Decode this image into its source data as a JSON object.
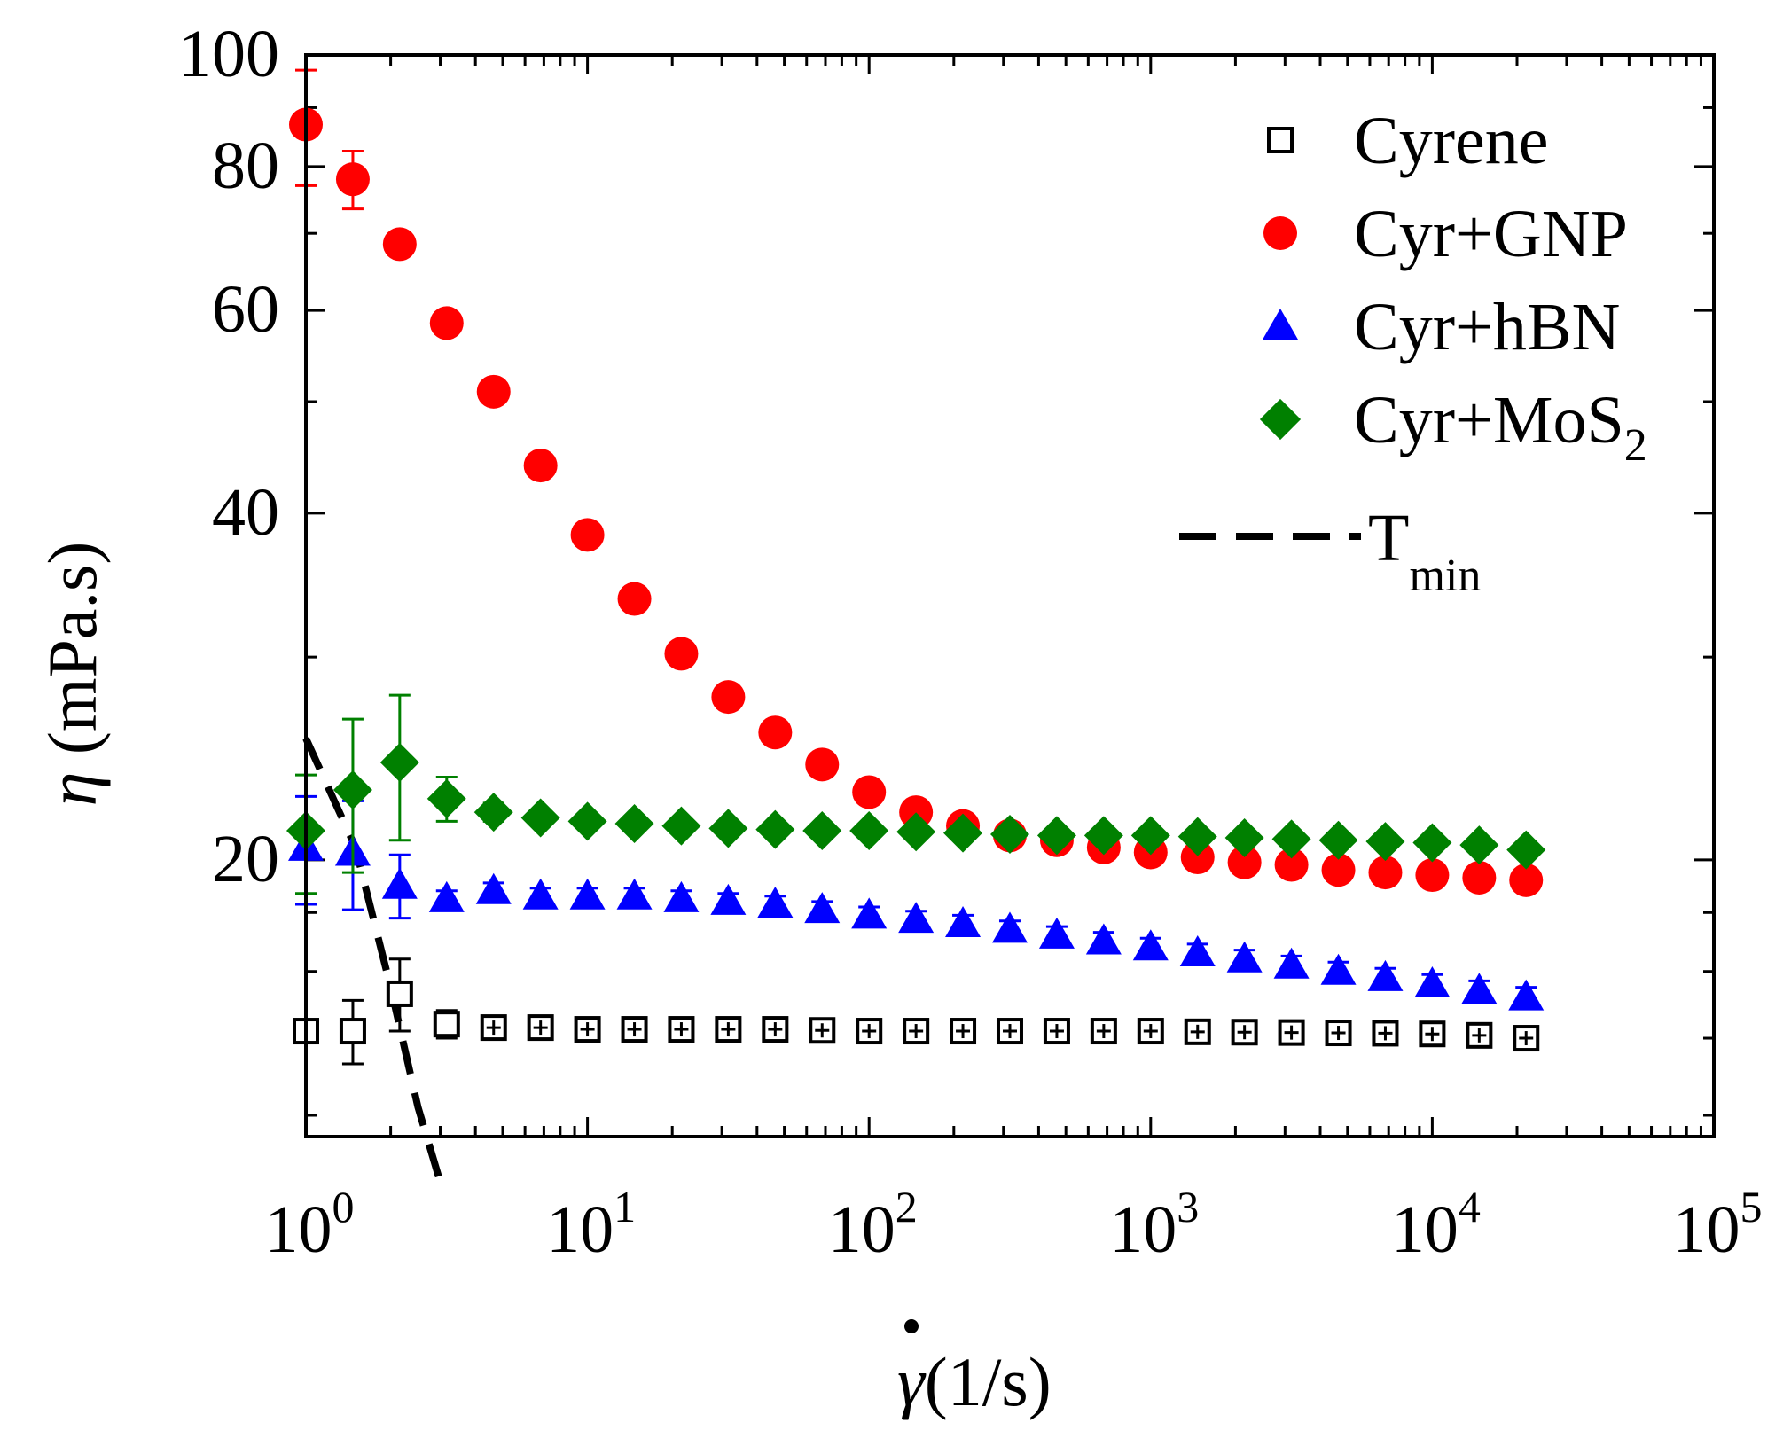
{
  "chart_data": {
    "type": "scatter",
    "title": "",
    "xlabel": {
      "symbol": "γ",
      "unit": "(1/s)"
    },
    "ylabel": {
      "symbol": "η",
      "unit": " (mPa.s)"
    },
    "xscale": "log",
    "yscale": "log",
    "xlim": [
      1,
      100000
    ],
    "ylim": [
      11.5,
      100
    ],
    "x_ticks": [
      {
        "base": "10",
        "exp": "0",
        "value": 1
      },
      {
        "base": "10",
        "exp": "1",
        "value": 10
      },
      {
        "base": "10",
        "exp": "2",
        "value": 100
      },
      {
        "base": "10",
        "exp": "3",
        "value": 1000
      },
      {
        "base": "10",
        "exp": "4",
        "value": 10000
      },
      {
        "base": "10",
        "exp": "5",
        "value": 100000
      }
    ],
    "y_ticks": [
      {
        "label": "20",
        "value": 20
      },
      {
        "label": "40",
        "value": 40
      },
      {
        "label": "60",
        "value": 60
      },
      {
        "label": "80",
        "value": 80
      },
      {
        "label": "100",
        "value": 100
      }
    ],
    "x": [
      1,
      1.468,
      2.154,
      3.162,
      4.642,
      6.813,
      10,
      14.68,
      21.54,
      31.62,
      46.42,
      68.13,
      100,
      146.8,
      215.4,
      316.2,
      464.2,
      681.3,
      1000,
      1468,
      2154,
      3162,
      4642,
      6813,
      10000,
      14680,
      21540
    ],
    "series": [
      {
        "name": "Cyrene",
        "marker": "open-square",
        "color": "#000000",
        "values": [
          14.2,
          14.2,
          15.3,
          14.4,
          14.3,
          14.3,
          14.25,
          14.25,
          14.25,
          14.25,
          14.25,
          14.22,
          14.2,
          14.2,
          14.2,
          14.2,
          14.2,
          14.2,
          14.2,
          14.18,
          14.17,
          14.16,
          14.15,
          14.14,
          14.12,
          14.08,
          14.0
        ],
        "errors": [
          0.2,
          0.9,
          1.1,
          0.4,
          0.1,
          0.1,
          0.1,
          0.1,
          0.1,
          0.1,
          0.1,
          0.1,
          0.1,
          0.1,
          0.1,
          0.1,
          0.1,
          0.1,
          0.1,
          0.1,
          0.1,
          0.1,
          0.1,
          0.1,
          0.1,
          0.1,
          0.1
        ]
      },
      {
        "name": "Cyr+GNP",
        "marker": "filled-circle",
        "color": "#ff0000",
        "values": [
          87,
          78,
          68.5,
          58.5,
          51,
          44,
          38.3,
          33.7,
          30.2,
          27.7,
          25.8,
          24.2,
          22.9,
          22.0,
          21.4,
          21.0,
          20.8,
          20.5,
          20.3,
          20.1,
          19.9,
          19.8,
          19.6,
          19.5,
          19.4,
          19.3,
          19.2
        ],
        "errors": [
          10,
          4.5,
          1.5,
          1.2,
          0,
          0,
          0,
          0,
          0,
          0,
          0,
          0,
          0,
          0,
          0,
          0.4,
          0.4,
          0.4,
          0.4,
          0.4,
          0.4,
          0.3,
          0.3,
          0.3,
          0.3,
          0.3,
          0.3
        ]
      },
      {
        "name": "Cyr+hBN",
        "marker": "filled-triangle",
        "color": "#0000ff",
        "values": [
          20.5,
          20.3,
          19.0,
          18.5,
          18.8,
          18.6,
          18.6,
          18.6,
          18.5,
          18.4,
          18.3,
          18.1,
          17.9,
          17.75,
          17.6,
          17.4,
          17.2,
          17.0,
          16.8,
          16.6,
          16.4,
          16.2,
          16.0,
          15.8,
          15.6,
          15.4,
          15.2
        ],
        "errors": [
          2.2,
          2.2,
          1.2,
          0.3,
          0.3,
          0.3,
          0.3,
          0.3,
          0.3,
          0.3,
          0.3,
          0.3,
          0.3,
          0.3,
          0.3,
          0.3,
          0.3,
          0.3,
          0.3,
          0.3,
          0.3,
          0.3,
          0.3,
          0.3,
          0.3,
          0.3,
          0.3
        ]
      },
      {
        "name": "Cyr+MoS",
        "sub": "2",
        "marker": "filled-diamond",
        "color": "#008000",
        "values": [
          21.2,
          23.0,
          24.3,
          22.6,
          22.0,
          21.75,
          21.6,
          21.5,
          21.4,
          21.3,
          21.25,
          21.2,
          21.2,
          21.15,
          21.1,
          21.05,
          21.0,
          21.0,
          21.0,
          20.95,
          20.9,
          20.85,
          20.8,
          20.75,
          20.7,
          20.6,
          20.4
        ],
        "errors": [
          2.5,
          3.5,
          3.5,
          1.0,
          0.4,
          0.3,
          0.3,
          0.3,
          0,
          0,
          0,
          0,
          0,
          0,
          0,
          0,
          0,
          0,
          0,
          0,
          0,
          0,
          0,
          0,
          0,
          0,
          0
        ]
      },
      {
        "name": "T",
        "sub": "min",
        "marker": "dashed-line",
        "color": "#000000",
        "x": [
          1,
          1.5,
          2.0,
          2.5,
          3.0
        ],
        "values": [
          25.5,
          20.5,
          15.5,
          12.2,
          10.5
        ]
      }
    ],
    "legend_position": "top-right"
  }
}
